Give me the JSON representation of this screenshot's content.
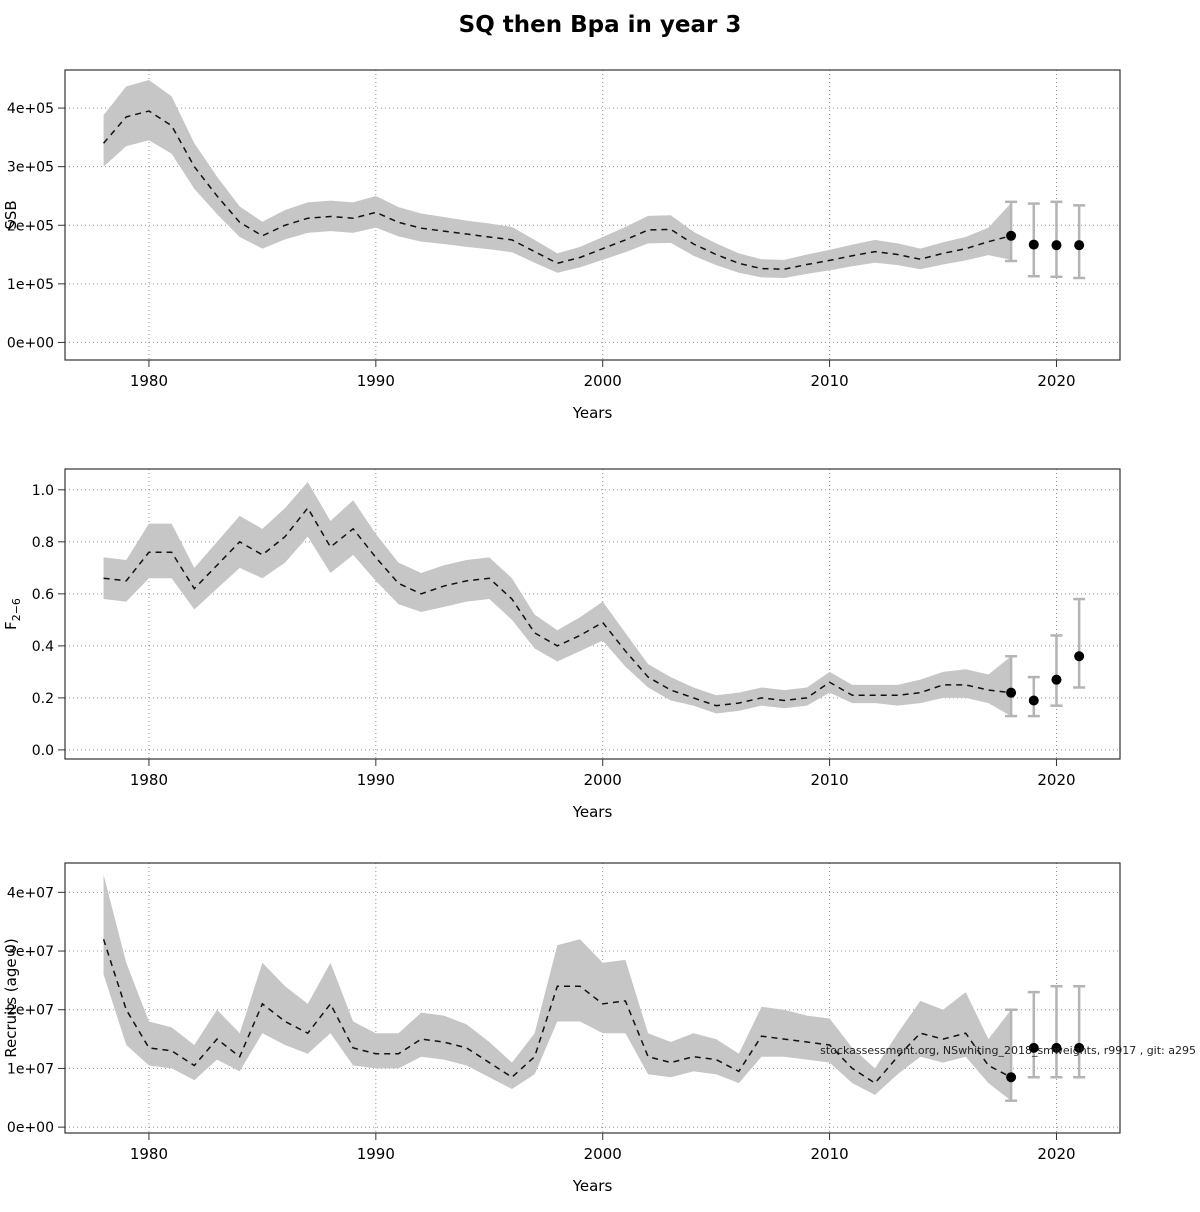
{
  "title": "SQ then Bpa in year 3",
  "annotation": "stockassessment.org, NSwhiting_2018_smweights, r9917 , git: a295",
  "colors": {
    "band": "#c6c6c6",
    "line": "#111111",
    "error_bar": "#b4b4b4",
    "point": "#000000",
    "grid": "#909090",
    "box": "#333333"
  },
  "years": [
    1978,
    1979,
    1980,
    1981,
    1982,
    1983,
    1984,
    1985,
    1986,
    1987,
    1988,
    1989,
    1990,
    1991,
    1992,
    1993,
    1994,
    1995,
    1996,
    1997,
    1998,
    1999,
    2000,
    2001,
    2002,
    2003,
    2004,
    2005,
    2006,
    2007,
    2008,
    2009,
    2010,
    2011,
    2012,
    2013,
    2014,
    2015,
    2016,
    2017,
    2018
  ],
  "chart_data": [
    {
      "type": "line",
      "title": "SSB",
      "ylabel": "SSB",
      "ylabel_sub": "",
      "xlabel": "Years",
      "xlim": [
        1976.3,
        2022.8
      ],
      "ylim": [
        -30000,
        465000
      ],
      "xticks": [
        1980,
        1990,
        2000,
        2010,
        2020
      ],
      "yticks": [
        0,
        100000,
        200000,
        300000,
        400000
      ],
      "ytick_labels": [
        "0e+00",
        "1e+05",
        "2e+05",
        "3e+05",
        "4e+05"
      ],
      "grid": true,
      "values": [
        340000,
        385000,
        395000,
        370000,
        300000,
        250000,
        205000,
        182000,
        200000,
        212000,
        215000,
        212000,
        222000,
        205000,
        195000,
        190000,
        185000,
        180000,
        175000,
        155000,
        135000,
        145000,
        160000,
        175000,
        192000,
        193000,
        168000,
        150000,
        135000,
        126000,
        125000,
        133000,
        140000,
        148000,
        155000,
        150000,
        142000,
        152000,
        160000,
        172000,
        182000
      ],
      "lo": [
        300000,
        335000,
        345000,
        322000,
        262000,
        219000,
        180000,
        160000,
        176000,
        187000,
        190000,
        187000,
        196000,
        181000,
        172000,
        168000,
        163000,
        159000,
        154000,
        136000,
        119000,
        128000,
        141000,
        154000,
        169000,
        170000,
        148000,
        132000,
        119000,
        111000,
        110000,
        117000,
        123000,
        130000,
        136000,
        132000,
        125000,
        133000,
        140000,
        149000,
        141000
      ],
      "hi": [
        388000,
        437000,
        448000,
        420000,
        340000,
        283000,
        232000,
        206000,
        226000,
        239000,
        242000,
        239000,
        250000,
        231000,
        220000,
        214000,
        208000,
        203000,
        197000,
        175000,
        152000,
        163000,
        180000,
        197000,
        216000,
        217000,
        189000,
        169000,
        152000,
        142000,
        141000,
        150000,
        158000,
        167000,
        175000,
        169000,
        160000,
        171000,
        180000,
        196000,
        238000
      ],
      "forecast": {
        "years": [
          2018,
          2019,
          2020,
          2021
        ],
        "values": [
          182000,
          167000,
          166000,
          166000
        ],
        "lo": [
          139000,
          113000,
          112000,
          110000
        ],
        "hi": [
          240000,
          237000,
          240000,
          234000
        ]
      }
    },
    {
      "type": "line",
      "title": "F 2-6",
      "ylabel": "F",
      "ylabel_sub": "2−6",
      "xlabel": "Years",
      "xlim": [
        1976.3,
        2022.8
      ],
      "ylim": [
        -0.035,
        1.08
      ],
      "xticks": [
        1980,
        1990,
        2000,
        2010,
        2020
      ],
      "yticks": [
        0.0,
        0.2,
        0.4,
        0.6,
        0.8,
        1.0
      ],
      "ytick_labels": [
        "0.0",
        "0.2",
        "0.4",
        "0.6",
        "0.8",
        "1.0"
      ],
      "grid": true,
      "values": [
        0.66,
        0.65,
        0.76,
        0.76,
        0.62,
        0.71,
        0.8,
        0.75,
        0.82,
        0.93,
        0.78,
        0.85,
        0.74,
        0.64,
        0.6,
        0.63,
        0.65,
        0.66,
        0.58,
        0.45,
        0.4,
        0.44,
        0.49,
        0.38,
        0.28,
        0.23,
        0.2,
        0.17,
        0.18,
        0.2,
        0.19,
        0.2,
        0.26,
        0.21,
        0.21,
        0.21,
        0.22,
        0.25,
        0.25,
        0.23,
        0.22
      ],
      "lo": [
        0.58,
        0.57,
        0.66,
        0.66,
        0.54,
        0.62,
        0.7,
        0.66,
        0.72,
        0.82,
        0.68,
        0.75,
        0.65,
        0.56,
        0.53,
        0.55,
        0.57,
        0.58,
        0.5,
        0.39,
        0.34,
        0.38,
        0.42,
        0.32,
        0.24,
        0.19,
        0.17,
        0.14,
        0.15,
        0.17,
        0.16,
        0.17,
        0.22,
        0.18,
        0.18,
        0.17,
        0.18,
        0.2,
        0.2,
        0.18,
        0.13
      ],
      "hi": [
        0.74,
        0.73,
        0.87,
        0.87,
        0.7,
        0.8,
        0.9,
        0.85,
        0.93,
        1.03,
        0.88,
        0.96,
        0.83,
        0.72,
        0.68,
        0.71,
        0.73,
        0.74,
        0.66,
        0.52,
        0.46,
        0.51,
        0.57,
        0.45,
        0.33,
        0.28,
        0.24,
        0.21,
        0.22,
        0.24,
        0.23,
        0.24,
        0.3,
        0.25,
        0.25,
        0.25,
        0.27,
        0.3,
        0.31,
        0.29,
        0.36
      ],
      "forecast": {
        "years": [
          2018,
          2019,
          2020,
          2021
        ],
        "values": [
          0.22,
          0.19,
          0.27,
          0.36
        ],
        "lo": [
          0.13,
          0.13,
          0.17,
          0.24
        ],
        "hi": [
          0.36,
          0.28,
          0.44,
          0.58
        ]
      }
    },
    {
      "type": "line",
      "title": "Recruits (age 0)",
      "ylabel": "Recruits (age 0)",
      "ylabel_sub": "",
      "xlabel": "Years",
      "xlim": [
        1976.3,
        2022.8
      ],
      "ylim": [
        -1000000,
        45000000
      ],
      "xticks": [
        1980,
        1990,
        2000,
        2010,
        2020
      ],
      "yticks": [
        0,
        10000000,
        20000000,
        30000000,
        40000000
      ],
      "ytick_labels": [
        "0e+00",
        "1e+07",
        "2e+07",
        "3e+07",
        "4e+07"
      ],
      "grid": true,
      "values": [
        32000000,
        20000000,
        13500000,
        13000000,
        10500000,
        15000000,
        12000000,
        21000000,
        18000000,
        16000000,
        21000000,
        13500000,
        12500000,
        12500000,
        15000000,
        14500000,
        13500000,
        11000000,
        8500000,
        12000000,
        24000000,
        24000000,
        21000000,
        21500000,
        12000000,
        11000000,
        12000000,
        11500000,
        9500000,
        15500000,
        15000000,
        14500000,
        14000000,
        10000000,
        7500000,
        12000000,
        16000000,
        15000000,
        16000000,
        10500000,
        8500000
      ],
      "lo": [
        26000000,
        14000000,
        10500000,
        10000000,
        8000000,
        11500000,
        9500000,
        16000000,
        14000000,
        12500000,
        16000000,
        10500000,
        10000000,
        10000000,
        12000000,
        11500000,
        10500000,
        8500000,
        6500000,
        9000000,
        18000000,
        18000000,
        16000000,
        16000000,
        9000000,
        8500000,
        9500000,
        9000000,
        7500000,
        12000000,
        12000000,
        11500000,
        11000000,
        7500000,
        5500000,
        9000000,
        12000000,
        11000000,
        12000000,
        7500000,
        4500000
      ],
      "hi": [
        43000000,
        28000000,
        18000000,
        17000000,
        14000000,
        20000000,
        16000000,
        28000000,
        24000000,
        21000000,
        28000000,
        18000000,
        16000000,
        16000000,
        19500000,
        19000000,
        17500000,
        14500000,
        11000000,
        16000000,
        31000000,
        32000000,
        28000000,
        28500000,
        16000000,
        14500000,
        16000000,
        15000000,
        12500000,
        20500000,
        20000000,
        19000000,
        18500000,
        13500000,
        10000000,
        16000000,
        21500000,
        20000000,
        23000000,
        15000000,
        20000000
      ],
      "forecast": {
        "years": [
          2018,
          2019,
          2020,
          2021
        ],
        "values": [
          8500000,
          13500000,
          13500000,
          13500000
        ],
        "lo": [
          4500000,
          8500000,
          8500000,
          8500000
        ],
        "hi": [
          20000000,
          23000000,
          24000000,
          24000000
        ]
      }
    }
  ]
}
